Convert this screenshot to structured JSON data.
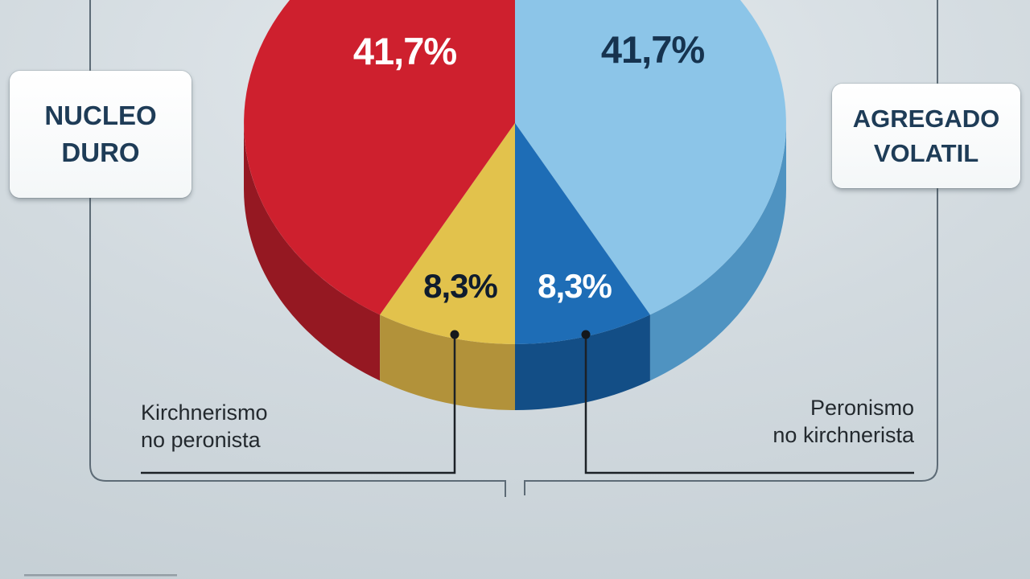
{
  "chart_data": {
    "type": "pie",
    "slices": [
      {
        "id": "celeste",
        "value": 41.7,
        "label": "41,7%",
        "color": "#8cc5e8",
        "side_color": "#4f93c1",
        "label_color": "#16334f"
      },
      {
        "id": "azul",
        "value": 8.3,
        "label": "8,3%",
        "color": "#1e6db6",
        "side_color": "#134e86",
        "label_color": "#ffffff"
      },
      {
        "id": "amarillo",
        "value": 8.3,
        "label": "8,3%",
        "color": "#e2c24c",
        "side_color": "#b2923a",
        "label_color": "#0f1c2e"
      },
      {
        "id": "rojo",
        "value": 41.7,
        "label": "41,7%",
        "color": "#ce202e",
        "side_color": "#951822",
        "label_color": "#ffffff"
      }
    ],
    "groups": [
      {
        "line1": "NUCLEO",
        "line2": "DURO",
        "covers": [
          "rojo",
          "amarillo"
        ]
      },
      {
        "line1": "AGREGADO",
        "line2": "VOLATIL",
        "covers": [
          "celeste",
          "azul"
        ]
      }
    ],
    "callouts": [
      {
        "line1": "Kirchnerismo",
        "line2": "no peronista",
        "points_to": "amarillo"
      },
      {
        "line1": "Peronismo",
        "line2": "no kirchnerista",
        "points_to": "azul"
      }
    ],
    "legend_position": "none",
    "title": ""
  },
  "colors": {
    "background_top": "#e3e9ed",
    "background_bottom": "#c3cdd3",
    "bracket_line": "#5d6b76",
    "callout_line": "#1c2126",
    "box_text": "#1e3c57"
  }
}
